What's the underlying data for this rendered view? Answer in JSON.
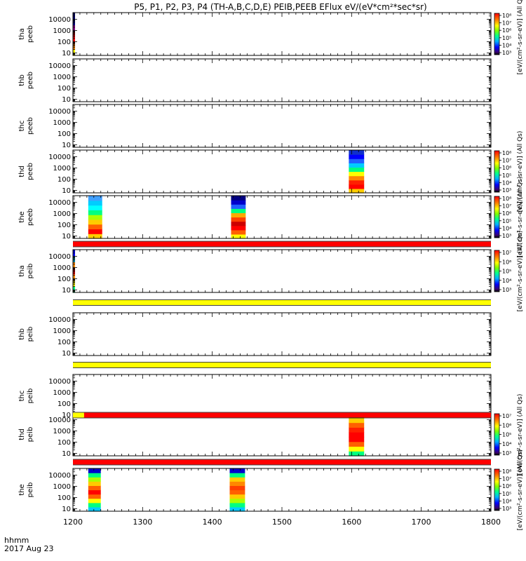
{
  "chart_data": {
    "type": "heatmap",
    "title": "P5, P1, P2, P3, P4 (TH-A,B,C,D,E) PEIB,PEEB EFlux eV/(eV*cm²*sec*sr)",
    "x": {
      "ticks": [
        1200,
        1300,
        1400,
        1500,
        1600,
        1700,
        1800
      ],
      "tick_labels": [
        "1200",
        "1300",
        "1400",
        "1500",
        "1600",
        "1700",
        "1800"
      ],
      "range": [
        1200,
        1800
      ],
      "label_line1": "hhmm",
      "label_line2": "2017 Aug 23"
    },
    "y_scale": "log",
    "y_range": [
      6,
      40000
    ],
    "y_ticks": [
      10,
      100,
      1000,
      10000
    ],
    "y_tick_labels": [
      "10",
      "100",
      "1000",
      "10000"
    ],
    "panels": [
      {
        "label": [
          "tha",
          "peeb"
        ],
        "blocks": [
          {
            "x0": 1200,
            "x1": 1203,
            "colors": [
              "#ffff00",
              "#ff8800",
              "#ff0000",
              "#cc0000",
              "#800080",
              "#0000cc",
              "#000060"
            ]
          }
        ],
        "colorbar": {
          "ticks": [
            "10³",
            "10⁴",
            "10⁵",
            "10⁶",
            "10⁷",
            "10⁸"
          ],
          "label": "[eV/(cm²-s-sr-eV)] (All Qs)"
        }
      },
      {
        "label": [
          "thb",
          "peeb"
        ],
        "blocks": []
      },
      {
        "label": [
          "thc",
          "peeb"
        ],
        "blocks": []
      },
      {
        "label": [
          "thd",
          "peeb"
        ],
        "blocks": [
          {
            "x0": 1596,
            "x1": 1618,
            "colors": [
              "#ffcc00",
              "#ff0000",
              "#ff2000",
              "#ff8800",
              "#ffff00",
              "#00ff80",
              "#00ccff",
              "#2060ff",
              "#0000ff",
              "#1030cc"
            ]
          }
        ],
        "colorbar": {
          "ticks": [
            "10³",
            "10⁴",
            "10⁵",
            "10⁶",
            "10⁷",
            "10⁸"
          ],
          "label": "[eV/(cm²-s-sr-eV)] (All Qs)"
        }
      },
      {
        "label": [
          "the",
          "peeb"
        ],
        "blocks": [
          {
            "x0": 1222,
            "x1": 1242,
            "colors": [
              "#ffcc00",
              "#ff0000",
              "#ff6000",
              "#ffcc00",
              "#aaff00",
              "#00ff80",
              "#00ffff",
              "#00ccff",
              "#40a0ff"
            ]
          },
          {
            "x0": 1427,
            "x1": 1448,
            "colors": [
              "#ffff00",
              "#ff6000",
              "#ff0000",
              "#cc0000",
              "#ff4000",
              "#ffaa00",
              "#00ff80",
              "#2060ff",
              "#0000cc",
              "#000080"
            ]
          }
        ],
        "colorbar": {
          "ticks": [
            "10³",
            "10⁴",
            "10⁵",
            "10⁶",
            "10⁷",
            "10⁸"
          ],
          "label": "[eV/(cm²-s-sr-eV)] (All Qs)"
        }
      },
      {
        "label": [
          "tha",
          "peib"
        ],
        "blocks": [
          {
            "x0": 1200,
            "x1": 1203,
            "colors": [
              "#00ff80",
              "#ffff00",
              "#ff8800",
              "#ff0000",
              "#ff8800",
              "#00ccff",
              "#0000ff"
            ]
          }
        ],
        "colorbar": {
          "ticks": [
            "10³",
            "10⁴",
            "10⁵",
            "10⁶",
            "10⁷"
          ],
          "label": "[eV/(cm²-s-sr-eV)] (All Qs)"
        }
      },
      {
        "label": [
          "thb",
          "peib"
        ],
        "blocks": []
      },
      {
        "label": [
          "thc",
          "peib"
        ],
        "blocks": []
      },
      {
        "label": [
          "thd",
          "peib"
        ],
        "blocks": [
          {
            "x0": 1596,
            "x1": 1618,
            "colors": [
              "#00ff80",
              "#ffff00",
              "#ff6000",
              "#ff0000",
              "#ff0000",
              "#ff2000",
              "#ff6000",
              "#ffcc00",
              "#00ff80"
            ]
          }
        ],
        "colorbar": {
          "ticks": [
            "10³",
            "10⁴",
            "10⁵",
            "10⁶",
            "10⁷"
          ],
          "label": "[eV/(cm²-s-sr-eV)] (All Qs)"
        }
      },
      {
        "label": [
          "the",
          "peib"
        ],
        "blocks": [
          {
            "x0": 1222,
            "x1": 1240,
            "colors": [
              "#00ccff",
              "#00ff80",
              "#ffff00",
              "#ff6000",
              "#ff0000",
              "#ff6000",
              "#ffcc00",
              "#aaff00",
              "#00ff80",
              "#0000cc"
            ]
          },
          {
            "x0": 1425,
            "x1": 1447,
            "colors": [
              "#00ccff",
              "#00ff80",
              "#aaff00",
              "#ffcc00",
              "#ff6000",
              "#ff4000",
              "#ff8800",
              "#ffcc00",
              "#00ff80",
              "#0000cc"
            ]
          }
        ],
        "colorbar": {
          "ticks": [
            "10³",
            "10⁴",
            "10⁵",
            "10⁶",
            "10⁷",
            "10⁸"
          ],
          "label": "[eV/(cm²-s-sr-eV)] (All Qs)"
        }
      }
    ],
    "strips": [
      {
        "after_panel": 4,
        "segments": [
          {
            "x0": 1200,
            "x1": 1800,
            "color": "#ff0000"
          }
        ]
      },
      {
        "after_panel": 5,
        "segments": [
          {
            "x0": 1200,
            "x1": 1800,
            "color": "#ffff00"
          }
        ]
      },
      {
        "after_panel": 6,
        "segments": [
          {
            "x0": 1200,
            "x1": 1800,
            "color": "#ffff00"
          }
        ]
      },
      {
        "after_panel": 7,
        "segments": [
          {
            "x0": 1200,
            "x1": 1216,
            "color": "#ffff00"
          },
          {
            "x0": 1216,
            "x1": 1800,
            "color": "#ff0000"
          }
        ]
      },
      {
        "after_panel": 8,
        "segments": [
          {
            "x0": 1200,
            "x1": 1800,
            "color": "#ff0000"
          }
        ]
      }
    ]
  }
}
